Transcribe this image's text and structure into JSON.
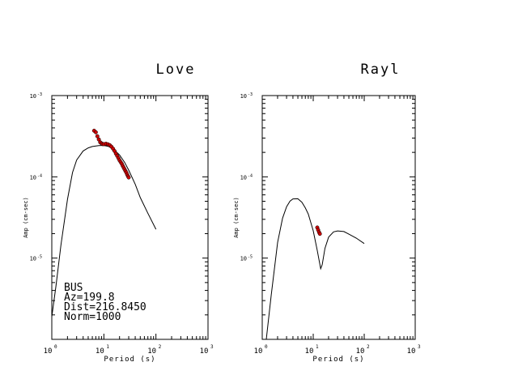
{
  "chart_data": [
    {
      "type": "line",
      "title": "Love",
      "xlabel": "Period (s)",
      "ylabel": "Amp (cm-sec)",
      "xscale": "log",
      "yscale": "log",
      "xlim": [
        1,
        1000
      ],
      "ylim": [
        1e-06,
        0.001
      ],
      "xticks": [
        {
          "base": "10",
          "exp": "0"
        },
        {
          "base": "10",
          "exp": "1"
        },
        {
          "base": "10",
          "exp": "2"
        },
        {
          "base": "10",
          "exp": "3"
        }
      ],
      "yticks": [
        {
          "value": 0.001,
          "base": "10",
          "exp": "-3"
        },
        {
          "value": 0.0001,
          "base": "10",
          "exp": "-4"
        },
        {
          "value": 1e-05,
          "base": "10",
          "exp": "-5"
        }
      ],
      "info": [
        "BUS",
        "Az=199.8",
        "Dist=216.8450",
        "Norm=1000"
      ],
      "series": [
        {
          "kind": "line",
          "color": "#000000",
          "x": [
            1.0,
            1.2,
            1.5,
            2,
            2.5,
            3,
            4,
            5,
            6,
            8,
            10,
            12,
            15,
            20,
            25,
            30,
            40,
            50,
            70,
            100
          ],
          "y": [
            1.9e-06,
            4.5e-06,
            1.45e-05,
            5.3e-05,
            0.000113,
            0.000161,
            0.000208,
            0.000227,
            0.000236,
            0.000242,
            0.000243,
            0.000238,
            0.000222,
            0.000186,
            0.000151,
            0.000121,
            8.09e-05,
            5.56e-05,
            3.56e-05,
            2.26e-05
          ]
        },
        {
          "kind": "points",
          "color": "#cc0000",
          "x": [
            6.5,
            7,
            7.5,
            8,
            8.5,
            9,
            9.5,
            10,
            11,
            12,
            13,
            14,
            15,
            16,
            17,
            18,
            19,
            20,
            21,
            22,
            23,
            24,
            25,
            26,
            27,
            28,
            29,
            30
          ],
          "y": [
            0.000369,
            0.000354,
            0.000316,
            0.000288,
            0.000266,
            0.000258,
            0.000253,
            0.000253,
            0.000255,
            0.000251,
            0.000245,
            0.000235,
            0.000222,
            0.000208,
            0.000193,
            0.000181,
            0.00017,
            0.00016,
            0.000152,
            0.000145,
            0.000137,
            0.00013,
            0.000124,
            0.000118,
            0.000113,
            0.000107,
            0.000102,
            9.83e-05
          ]
        }
      ]
    },
    {
      "type": "line",
      "title": "Rayl",
      "xlabel": "Period (s)",
      "ylabel": "Amp (cm-sec)",
      "xscale": "log",
      "yscale": "log",
      "xlim": [
        1,
        1000
      ],
      "ylim": [
        1e-06,
        0.001
      ],
      "xticks": [
        {
          "base": "10",
          "exp": "0"
        },
        {
          "base": "10",
          "exp": "1"
        },
        {
          "base": "10",
          "exp": "2"
        },
        {
          "base": "10",
          "exp": "3"
        }
      ],
      "yticks": [
        {
          "value": 0.001,
          "base": "10",
          "exp": "-3"
        },
        {
          "value": 0.0001,
          "base": "10",
          "exp": "-4"
        },
        {
          "value": 1e-05,
          "base": "10",
          "exp": "-5"
        }
      ],
      "info": [],
      "series": [
        {
          "kind": "line",
          "color": "#000000",
          "x": [
            1.0,
            1.2,
            1.5,
            2,
            2.5,
            3,
            3.5,
            4,
            5,
            6,
            7,
            8,
            10,
            12,
            14,
            15,
            17,
            20,
            25,
            30,
            40,
            50,
            70,
            100
          ],
          "y": [
            1e-06,
            1e-06,
            3.5e-06,
            1.56e-05,
            3.1e-05,
            4.29e-05,
            5.02e-05,
            5.35e-05,
            5.37e-05,
            4.87e-05,
            4.16e-05,
            3.48e-05,
            2.17e-05,
            1.24e-05,
            7.4e-06,
            8.3e-06,
            1.32e-05,
            1.81e-05,
            2.1e-05,
            2.16e-05,
            2.12e-05,
            1.97e-05,
            1.76e-05,
            1.51e-05
          ]
        },
        {
          "kind": "points",
          "color": "#cc0000",
          "x": [
            12,
            12.5,
            13,
            13.5
          ],
          "y": [
            2.38e-05,
            2.22e-05,
            2.08e-05,
            1.99e-05
          ]
        }
      ]
    }
  ]
}
